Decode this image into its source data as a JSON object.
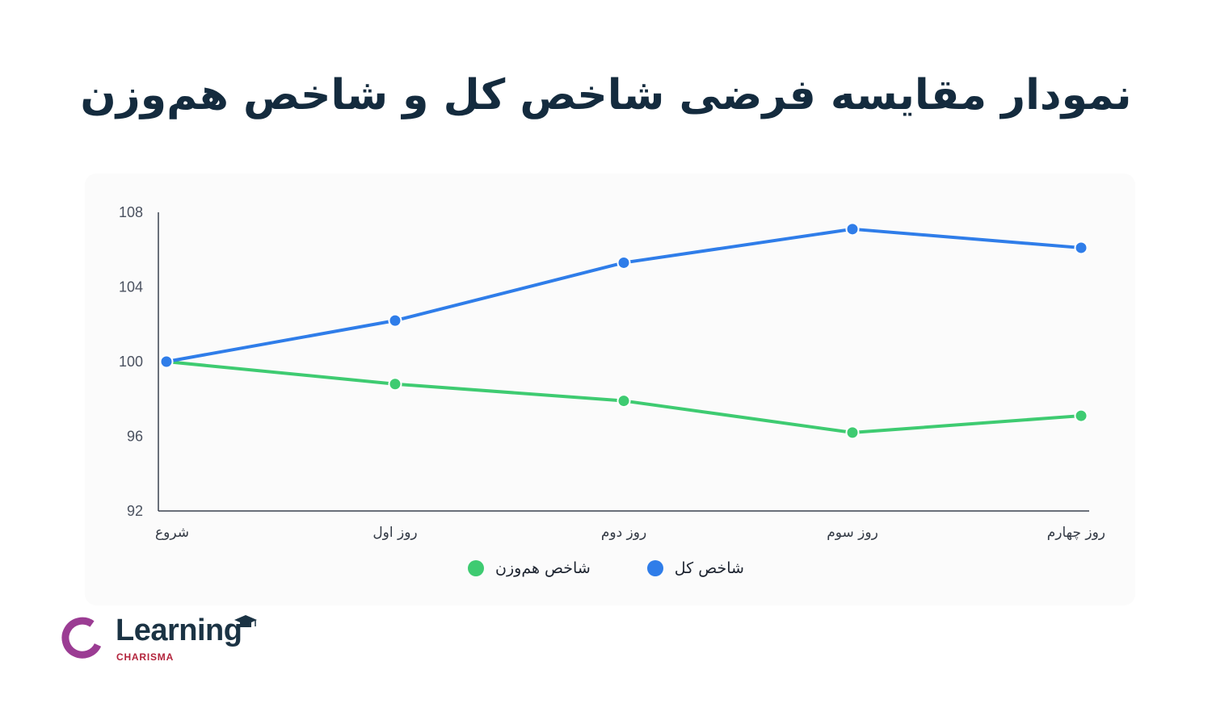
{
  "title": "نمودار مقایسه فرضی شاخص کل و شاخص هم‌وزن",
  "chart_data": {
    "type": "line",
    "title": "نمودار مقایسه فرضی شاخص کل و شاخص هم‌وزن",
    "categories": [
      "شروع",
      "روز اول",
      "روز دوم",
      "روز سوم",
      "روز چهارم"
    ],
    "ylim": [
      92,
      108
    ],
    "yticks": [
      92,
      96,
      100,
      104,
      108
    ],
    "grid": false,
    "legend_position": "bottom",
    "series": [
      {
        "name": "شاخص کل",
        "color": "#2f7de9",
        "values": [
          100,
          102.2,
          105.3,
          107.1,
          106.1
        ]
      },
      {
        "name": "شاخص هم‌وزن",
        "color": "#3ecb71",
        "values": [
          100,
          98.8,
          97.9,
          96.2,
          97.1
        ]
      }
    ]
  },
  "logo": {
    "name": "Learning",
    "subtitle": "CHARISMA",
    "ring_color": "#9b3c93",
    "accent_color": "#b3243c",
    "text_color": "#1b3344"
  }
}
